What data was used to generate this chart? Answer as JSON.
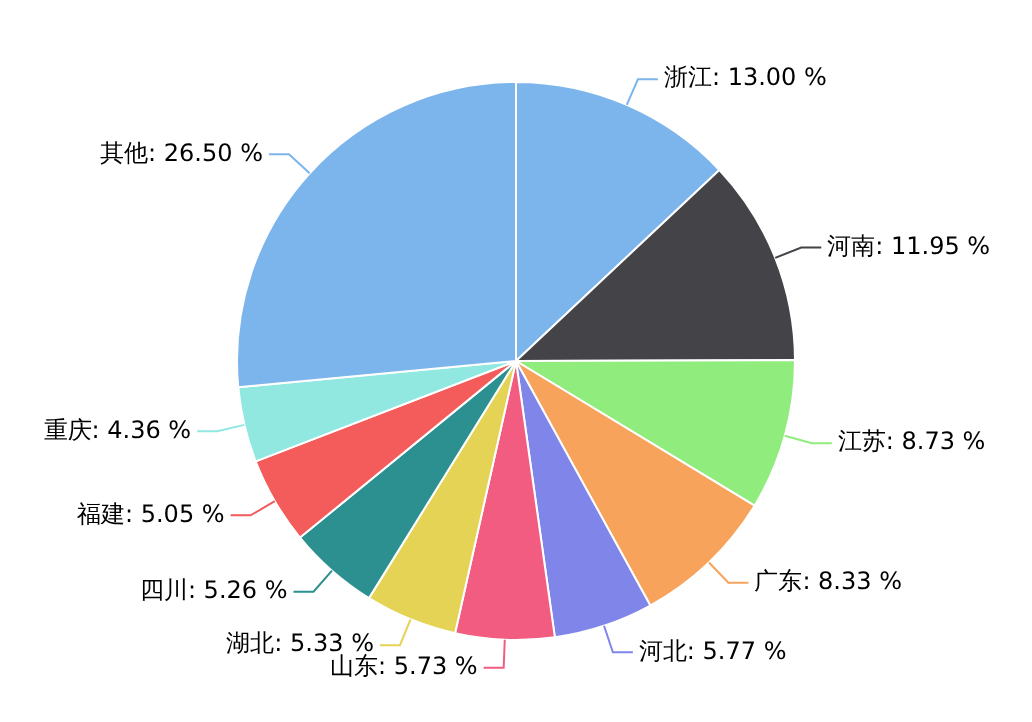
{
  "chart_data": {
    "type": "pie",
    "categories": [
      "浙江",
      "河南",
      "江苏",
      "广东",
      "河北",
      "山东",
      "湖北",
      "四川",
      "福建",
      "重庆",
      "其他"
    ],
    "values": [
      13.0,
      11.95,
      8.73,
      8.33,
      5.77,
      5.73,
      5.33,
      5.26,
      5.05,
      4.36,
      26.5
    ],
    "colors": [
      "#7cb5ec",
      "#434348",
      "#90ed7d",
      "#f7a35c",
      "#8085e9",
      "#f15c80",
      "#e4d354",
      "#2b908f",
      "#f45b5b",
      "#91e8e1",
      "#7cb5ec"
    ],
    "value_labels": [
      "13.00 %",
      "11.95 %",
      "8.73 %",
      "8.33 %",
      "5.77 %",
      "5.73 %",
      "5.33 %",
      "5.26 %",
      "5.05 %",
      "4.36 %",
      "26.50 %"
    ],
    "legend": false
  }
}
